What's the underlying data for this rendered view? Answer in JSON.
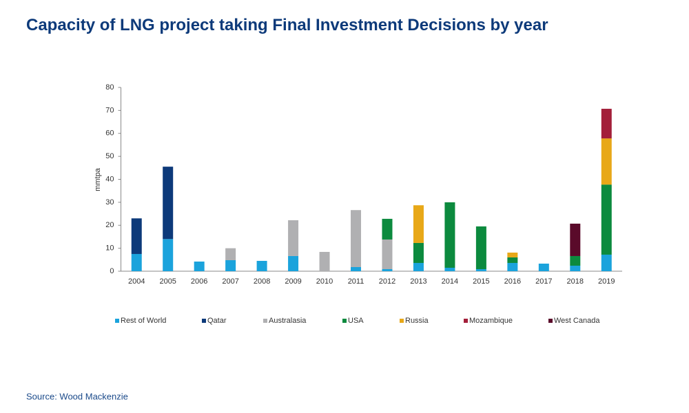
{
  "chart_data": {
    "type": "stacked-bar",
    "title": "Capacity of LNG project taking Final Investment Decisions by year",
    "y_label": "mmtpa",
    "source": "Source: Wood Mackenzie",
    "categories": [
      "2004",
      "2005",
      "2006",
      "2007",
      "2008",
      "2009",
      "2010",
      "2011",
      "2012",
      "2013",
      "2014",
      "2015",
      "2016",
      "2017",
      "2018",
      "2019"
    ],
    "series": [
      {
        "name": "Rest of World",
        "color": "#1ba3dc",
        "values": [
          7.5,
          14,
          4.2,
          4.8,
          4.5,
          6.6,
          0,
          1.8,
          0.9,
          3.6,
          1.5,
          0.9,
          3.6,
          3.3,
          2.4,
          7.2
        ]
      },
      {
        "name": "Qatar",
        "color": "#0d3a7a",
        "values": [
          15.5,
          31.5,
          0,
          0,
          0,
          0,
          0,
          0,
          0,
          0,
          0,
          0,
          0,
          0,
          0,
          0
        ]
      },
      {
        "name": "Australasia",
        "color": "#b0b0b2",
        "values": [
          0,
          0,
          0,
          5.2,
          0,
          15.6,
          8.4,
          24.8,
          12.9,
          0,
          0,
          0,
          0,
          0,
          0,
          0
        ]
      },
      {
        "name": "USA",
        "color": "#0c8a3e",
        "values": [
          0,
          0,
          0,
          0,
          0,
          0,
          0,
          0,
          9,
          8.7,
          28.5,
          18.6,
          2.4,
          0,
          4.2,
          30.5
        ]
      },
      {
        "name": "Russia",
        "color": "#e8a818",
        "values": [
          0,
          0,
          0,
          0,
          0,
          0,
          0,
          0,
          0,
          16.4,
          0,
          0,
          2.1,
          0,
          0,
          20.1
        ]
      },
      {
        "name": "Mozambique",
        "color": "#a31f3a",
        "values": [
          0,
          0,
          0,
          0,
          0,
          0,
          0,
          0,
          0,
          0,
          0,
          0,
          0,
          0,
          0,
          12.9
        ]
      },
      {
        "name": "West Canada",
        "color": "#5a0a2a",
        "values": [
          0,
          0,
          0,
          0,
          0,
          0,
          0,
          0,
          0,
          0,
          0,
          0,
          0,
          0,
          14.1,
          0
        ]
      }
    ],
    "ylim": [
      0,
      80
    ],
    "yticks": [
      0,
      10,
      20,
      30,
      40,
      50,
      60,
      70,
      80
    ],
    "grid": false
  }
}
